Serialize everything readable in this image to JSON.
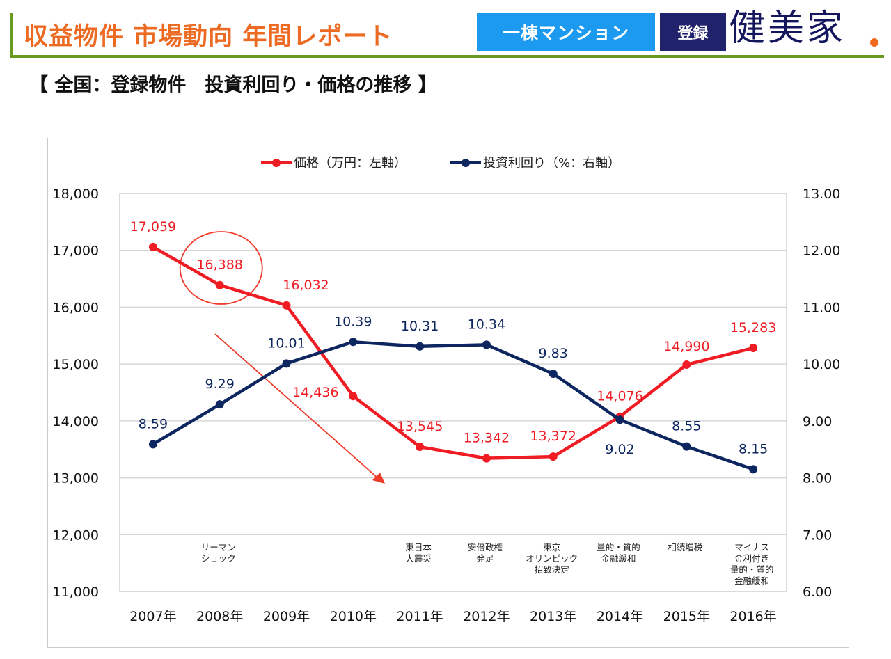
{
  "header": {
    "title": "収益物件 市場動向 年間レポート",
    "category_button": "一棟マンション",
    "register_button": "登録",
    "brand": "健美家",
    "colors": {
      "title": "#ec6a22",
      "accent_green": "#6a9a1f",
      "category_bg": "#1b9af0",
      "register_bg": "#20226c",
      "brand": "#14165e",
      "brand_dot": "#f06a1e"
    }
  },
  "subtitle": "【 全国：登録物件　投資利回り・価格の推移 】",
  "chart_data": {
    "type": "line",
    "title": "全国：登録物件　投資利回り・価格の推移",
    "categories": [
      "2007年",
      "2008年",
      "2009年",
      "2010年",
      "2011年",
      "2012年",
      "2013年",
      "2014年",
      "2015年",
      "2016年"
    ],
    "series": [
      {
        "name": "価格（万円：左軸）",
        "axis": "left",
        "color": "#f01c24",
        "values": [
          17059,
          16388,
          16032,
          14436,
          13545,
          13342,
          13372,
          14076,
          14990,
          15283
        ],
        "labels": [
          "17,059",
          "16,388",
          "16,032",
          "14,436",
          "13,545",
          "13,342",
          "13,372",
          "14,076",
          "14,990",
          "15,283"
        ]
      },
      {
        "name": "投資利回り（%：右軸）",
        "axis": "right",
        "color": "#0e2660",
        "values": [
          8.59,
          9.29,
          10.01,
          10.39,
          10.31,
          10.34,
          9.83,
          9.02,
          8.55,
          8.15
        ],
        "labels": [
          "8.59",
          "9.29",
          "10.01",
          "10.39",
          "10.31",
          "10.34",
          "9.83",
          "9.02",
          "8.55",
          "8.15"
        ]
      }
    ],
    "y_left": {
      "range": [
        11000,
        18000
      ],
      "ticks": [
        "18,000",
        "17,000",
        "16,000",
        "15,000",
        "14,000",
        "13,000",
        "12,000",
        "11,000"
      ]
    },
    "y_right": {
      "range": [
        6.0,
        13.0
      ],
      "ticks": [
        "13.00",
        "12.00",
        "11.00",
        "10.00",
        "9.00",
        "8.00",
        "7.00",
        "6.00"
      ]
    },
    "grid": true,
    "legend_position": "top-center",
    "events": [
      {
        "category": "2008年",
        "lines": [
          "リーマン",
          "ショック"
        ]
      },
      {
        "category": "2011年",
        "lines": [
          "東日本",
          "大震災"
        ]
      },
      {
        "category": "2012年",
        "lines": [
          "安倍政権",
          "発足"
        ]
      },
      {
        "category": "2013年",
        "lines": [
          "東京",
          "オリンピック",
          "招致決定"
        ]
      },
      {
        "category": "2014年",
        "lines": [
          "量的・質的",
          "金融緩和"
        ]
      },
      {
        "category": "2015年",
        "lines": [
          "相続増税"
        ]
      },
      {
        "category": "2016年",
        "lines": [
          "マイナス",
          "金利付き",
          "量的・質的",
          "金融緩和"
        ]
      }
    ],
    "annotations": [
      {
        "type": "circle",
        "highlight": "2008年 価格 16,388"
      },
      {
        "type": "arrow",
        "meaning": "downward trend in price after 2008"
      }
    ]
  }
}
